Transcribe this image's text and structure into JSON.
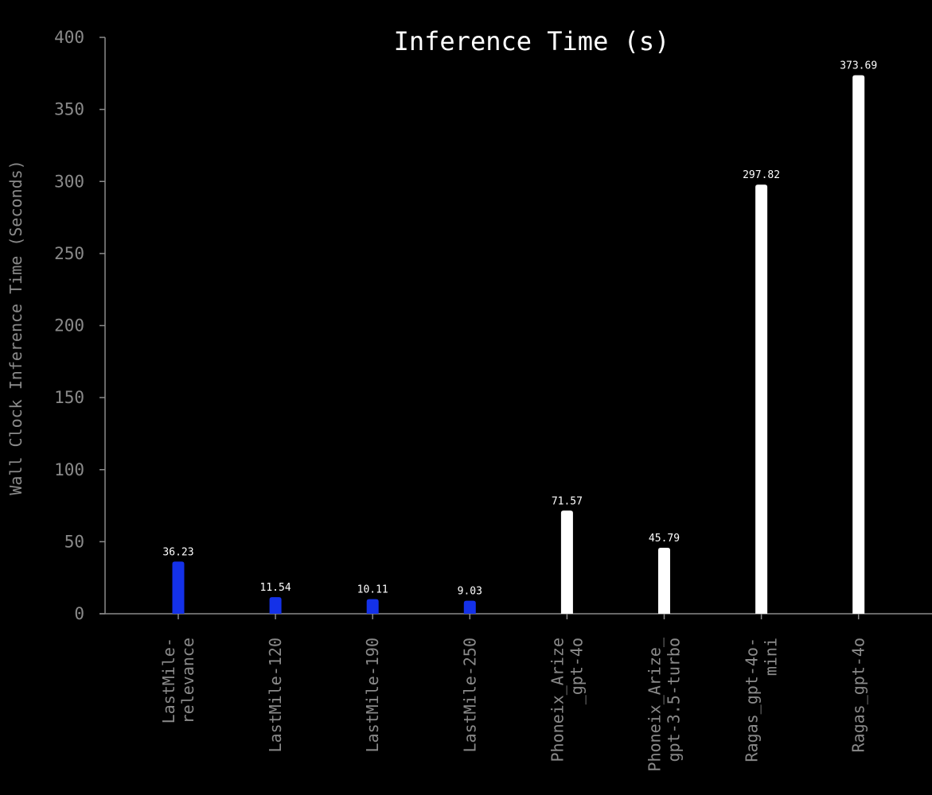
{
  "chart_data": {
    "type": "bar",
    "title": "Inference Time (s)",
    "xlabel": "",
    "ylabel": "Wall Clock Inference Time (Seconds)",
    "ylim": [
      0,
      400
    ],
    "yticks": [
      0,
      50,
      100,
      150,
      200,
      250,
      300,
      350,
      400
    ],
    "grid": false,
    "categories": [
      [
        "LastMile-",
        "relevance"
      ],
      [
        "LastMile-120"
      ],
      [
        "LastMile-190"
      ],
      [
        "LastMile-250"
      ],
      [
        "Phoneix_Arize",
        "_gpt-4o"
      ],
      [
        "Phoneix_Arize_",
        "gpt-3.5-turbo"
      ],
      [
        "Ragas_gpt-4o-",
        "mini"
      ],
      [
        "Ragas_gpt-4o"
      ]
    ],
    "values": [
      36.23,
      11.54,
      10.11,
      9.03,
      71.57,
      45.79,
      297.82,
      373.69
    ],
    "value_labels": [
      "36.23",
      "11.54",
      "10.11",
      "9.03",
      "71.57",
      "45.79",
      "297.82",
      "373.69"
    ],
    "colors": [
      "#1431e8",
      "#1431e8",
      "#1431e8",
      "#1431e8",
      "#ffffff",
      "#ffffff",
      "#ffffff",
      "#ffffff"
    ]
  }
}
